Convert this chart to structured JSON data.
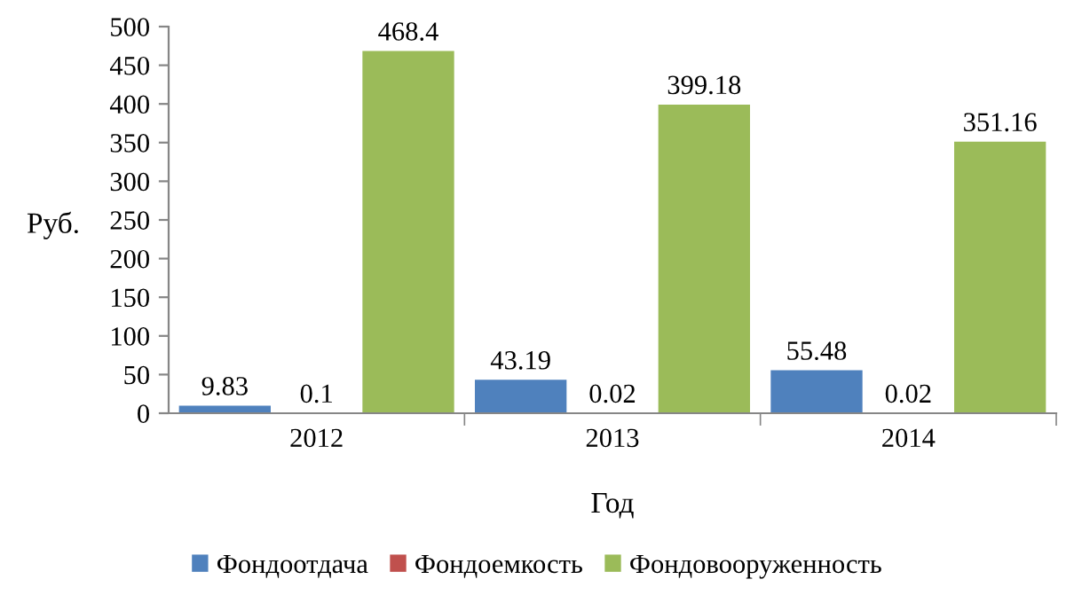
{
  "chart_data": {
    "type": "bar",
    "xlabel": "Год",
    "ylabel": "Руб.",
    "categories": [
      "2012",
      "2013",
      "2014"
    ],
    "series": [
      {
        "name": "Фондоотдача",
        "color": "#4f81bd",
        "values": [
          9.83,
          43.19,
          55.48
        ]
      },
      {
        "name": "Фондоемкость",
        "color": "#c0504d",
        "values": [
          0.1,
          0.02,
          0.02
        ]
      },
      {
        "name": "Фондовооруженность",
        "color": "#9bbb59",
        "values": [
          468.4,
          399.18,
          351.16
        ]
      }
    ],
    "ylim": [
      0,
      500
    ],
    "yticks": [
      0,
      50,
      100,
      150,
      200,
      250,
      300,
      350,
      400,
      450,
      500
    ],
    "grid": false,
    "legend": "bottom",
    "data_labels": true
  }
}
